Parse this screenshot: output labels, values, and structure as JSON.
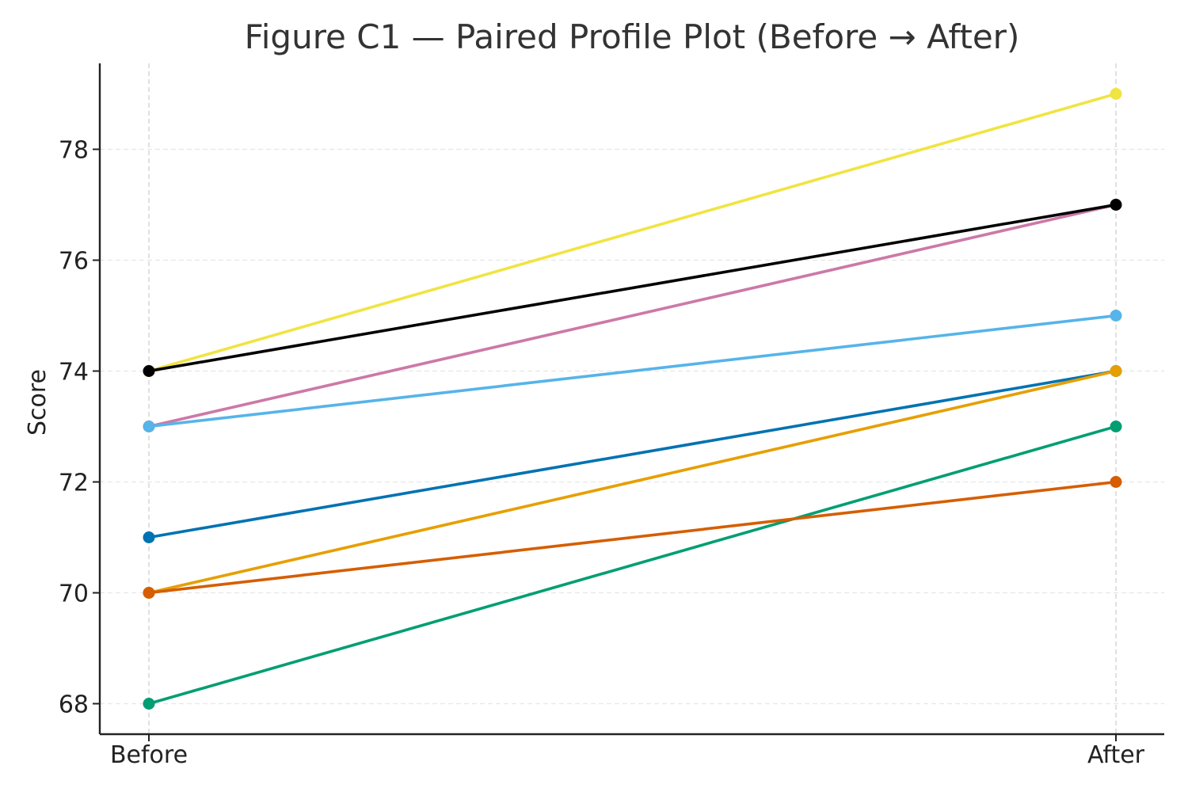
{
  "chart_data": {
    "type": "line",
    "title": "Figure C1 — Paired Profile Plot (Before → After)",
    "xlabel": "",
    "ylabel": "Score",
    "categories": [
      "Before",
      "After"
    ],
    "yticks": [
      68,
      70,
      72,
      74,
      76,
      78
    ],
    "ylim": [
      67.45,
      79.55
    ],
    "grid": true,
    "legend": "none",
    "series": [
      {
        "values": [
          74,
          79
        ],
        "color": "#f0e442"
      },
      {
        "values": [
          73,
          77
        ],
        "color": "#cc79a7"
      },
      {
        "values": [
          73,
          75
        ],
        "color": "#56b4e9"
      },
      {
        "values": [
          71,
          74
        ],
        "color": "#0072b2"
      },
      {
        "values": [
          70,
          74
        ],
        "color": "#e69f00"
      },
      {
        "values": [
          68,
          73
        ],
        "color": "#009e73"
      },
      {
        "values": [
          70,
          72
        ],
        "color": "#d55e00"
      },
      {
        "values": [
          74,
          77
        ],
        "color": "#000000"
      }
    ]
  }
}
